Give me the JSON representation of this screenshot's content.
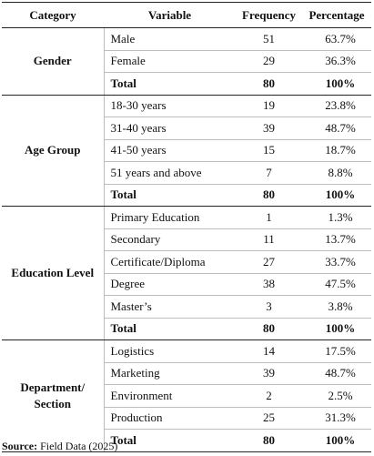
{
  "table": {
    "headers": [
      "Category",
      "Variable",
      "Frequency",
      "Percentage"
    ],
    "groups": [
      {
        "category": "Gender",
        "rows": [
          {
            "variable": "Male",
            "frequency": "51",
            "percentage": "63.7%"
          },
          {
            "variable": "Female",
            "frequency": "29",
            "percentage": "36.3%"
          }
        ],
        "total": {
          "label": "Total",
          "frequency": "80",
          "percentage": "100%"
        }
      },
      {
        "category": "Age Group",
        "rows": [
          {
            "variable": "18-30 years",
            "frequency": "19",
            "percentage": "23.8%"
          },
          {
            "variable": "31-40 years",
            "frequency": "39",
            "percentage": "48.7%"
          },
          {
            "variable": "41-50 years",
            "frequency": "15",
            "percentage": "18.7%"
          },
          {
            "variable": "51 years and above",
            "frequency": "7",
            "percentage": "8.8%"
          }
        ],
        "total": {
          "label": "Total",
          "frequency": "80",
          "percentage": "100%"
        }
      },
      {
        "category": "Education Level",
        "rows": [
          {
            "variable": "Primary Education",
            "frequency": "1",
            "percentage": "1.3%"
          },
          {
            "variable": "Secondary",
            "frequency": "11",
            "percentage": "13.7%"
          },
          {
            "variable": "Certificate/Diploma",
            "frequency": "27",
            "percentage": "33.7%"
          },
          {
            "variable": "Degree",
            "frequency": "38",
            "percentage": "47.5%"
          },
          {
            "variable": "Master’s",
            "frequency": "3",
            "percentage": "3.8%"
          }
        ],
        "total": {
          "label": "Total",
          "frequency": "80",
          "percentage": "100%"
        }
      },
      {
        "category": "Department/ Section",
        "rows": [
          {
            "variable": "Logistics",
            "frequency": "14",
            "percentage": "17.5%"
          },
          {
            "variable": "Marketing",
            "frequency": "39",
            "percentage": "48.7%"
          },
          {
            "variable": "Environment",
            "frequency": "2",
            "percentage": "2.5%"
          },
          {
            "variable": "Production",
            "frequency": "25",
            "percentage": "31.3%"
          }
        ],
        "total": {
          "label": "Total",
          "frequency": "80",
          "percentage": "100%"
        }
      }
    ]
  },
  "source": {
    "label": "Source:",
    "text": "Field Data (2025)"
  }
}
